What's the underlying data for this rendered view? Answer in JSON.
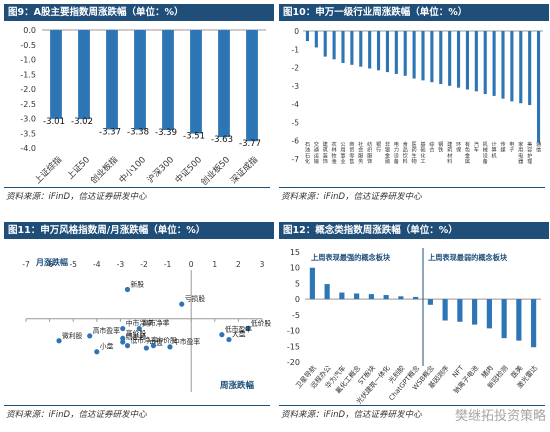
{
  "panels": [
    {
      "title": "图9：A股主要指数周涨跌幅（单位：%）",
      "source": "资料来源：iFinD，信达证券研发中心"
    },
    {
      "title": "图10：申万一级行业周涨跌幅（单位：%）",
      "source": "资料来源：iFinD，信达证券研发中心"
    },
    {
      "title": "图11：申万风格指数周/月涨跌幅（单位：%）",
      "source": "资料来源：iFinD，信达证券研发中心"
    },
    {
      "title": "图12：概念类指数周涨跌幅（单位：%）",
      "source": "资料来源：iFinD，信达证券研发中心"
    }
  ],
  "watermark": "樊继拓投资策略",
  "chart_data": [
    {
      "type": "bar",
      "categories": [
        "上证综指",
        "上证50",
        "创业板指",
        "中小100",
        "沪深300",
        "中证500",
        "创业板50",
        "深证成指"
      ],
      "values": [
        -3.01,
        -3.02,
        -3.37,
        -3.38,
        -3.39,
        -3.51,
        -3.63,
        -3.77
      ],
      "data_labels": [
        "-3.01",
        "-3.02",
        "-3.37",
        "-3.38",
        "-3.39",
        "-3.51",
        "-3.63",
        "-3.77"
      ],
      "ylim": [
        -4.0,
        0.0
      ],
      "yticks": [
        "0.0",
        "-0.5",
        "-1.0",
        "-1.5",
        "-2.0",
        "-2.5",
        "-3.0",
        "-3.5",
        "-4.0"
      ],
      "color": "#2e75b6"
    },
    {
      "type": "bar",
      "categories": [
        "石油石化",
        "交通运输",
        "建筑装饰",
        "农林牧渔",
        "公用事业",
        "商贸零售",
        "社会服务",
        "纺织服饰",
        "银行",
        "非银金融",
        "电力设备",
        "食品饮料",
        "医药生物",
        "基础化工",
        "综合",
        "钢铁",
        "建筑材料",
        "环保",
        "有色金属",
        "汽车",
        "机械设备",
        "计算机",
        "传媒",
        "电子",
        "家用电器",
        "美容护理",
        "通信"
      ],
      "values": [
        -0.55,
        -0.9,
        -1.4,
        -1.55,
        -1.75,
        -1.85,
        -1.95,
        -2.05,
        -2.15,
        -2.25,
        -2.35,
        -2.45,
        -2.6,
        -2.7,
        -2.8,
        -2.9,
        -3.0,
        -3.1,
        -3.2,
        -3.3,
        -3.45,
        -3.55,
        -3.7,
        -3.85,
        -3.95,
        -4.05,
        -6.1
      ],
      "ylim": [
        -7,
        0
      ],
      "yticks": [
        "0",
        "-1",
        "-2",
        "-3",
        "-4",
        "-5",
        "-6",
        "-7"
      ],
      "color": "#2e75b6"
    },
    {
      "type": "scatter",
      "xlabel": "周涨跌幅",
      "ylabel": "月涨跌幅",
      "xlim": [
        -7,
        3
      ],
      "ylim": [
        -6,
        4
      ],
      "xticks": [
        "-7",
        "-6",
        "-5",
        "-4",
        "-3",
        "-2",
        "-1",
        "0",
        "1",
        "2",
        "3"
      ],
      "points": [
        {
          "label": "新股",
          "x": -2.7,
          "y": 2.4
        },
        {
          "label": "亏损股",
          "x": -0.4,
          "y": 1.2
        },
        {
          "label": "低价股",
          "x": 2.4,
          "y": -0.8
        },
        {
          "label": "低市盈率",
          "x": 1.3,
          "y": -1.3
        },
        {
          "label": "大盘",
          "x": 1.6,
          "y": -1.7
        },
        {
          "label": "高市净率",
          "x": -2.2,
          "y": -0.8
        },
        {
          "label": "中市净率",
          "x": -2.9,
          "y": -0.8
        },
        {
          "label": "高价股",
          "x": -2.9,
          "y": -1.6
        },
        {
          "label": "高市盈率",
          "x": -4.3,
          "y": -1.4
        },
        {
          "label": "微利股",
          "x": -5.6,
          "y": -1.8
        },
        {
          "label": "绩差股",
          "x": -2.9,
          "y": -1.9
        },
        {
          "label": "低市净率",
          "x": -2.7,
          "y": -2.2
        },
        {
          "label": "中盘",
          "x": -1.9,
          "y": -2.4
        },
        {
          "label": "中价股",
          "x": -1.6,
          "y": -2.2
        },
        {
          "label": "中市盈率",
          "x": -0.9,
          "y": -2.3
        },
        {
          "label": "小盘",
          "x": -4.0,
          "y": -2.7
        }
      ],
      "color": "#2e75b6"
    },
    {
      "type": "bar",
      "legend": [
        "上周表现最强的概念板块",
        "上周表现最弱的概念板块"
      ],
      "categories": [
        "卫星导航",
        "远程办公",
        "华为汽车",
        "氟化工概念",
        "ST板块",
        "光伏建筑一体化",
        "光刻胶",
        "ChatGPT概念",
        "WSB概念",
        "基因测序",
        "NFT",
        "钠离子电池",
        "猪肉",
        "新冠检测",
        "医美",
        "激光雷达"
      ],
      "values": [
        10.0,
        4.8,
        2.1,
        1.8,
        1.6,
        1.3,
        0.9,
        0.7,
        -1.8,
        -6.8,
        -7.2,
        -8.1,
        -9.3,
        -12.4,
        -13.2,
        -15.3
      ],
      "ylim": [
        -20,
        15
      ],
      "yticks": [
        "15",
        "10",
        "5",
        "0",
        "-5",
        "-10",
        "-15",
        "-20"
      ],
      "color": "#2e75b6"
    }
  ]
}
